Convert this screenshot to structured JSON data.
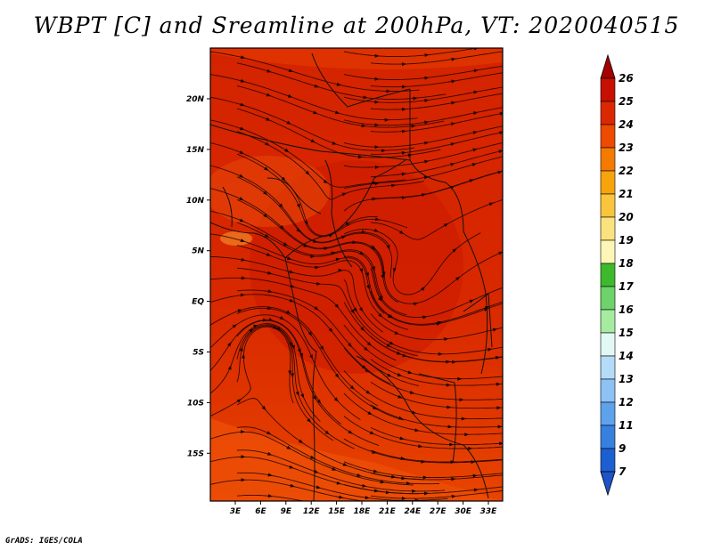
{
  "title": "WBPT [C] and Sreamline at 200hPa, VT: 2020040515",
  "credit": "GrADS: IGES/COLA",
  "map": {
    "lat_labels": [
      "20N",
      "15N",
      "10N",
      "5N",
      "EQ",
      "5S",
      "10S",
      "15S"
    ],
    "lon_labels": [
      "3E",
      "6E",
      "9E",
      "12E",
      "15E",
      "18E",
      "21E",
      "24E",
      "27E",
      "30E",
      "33E"
    ]
  },
  "colorbar": {
    "labels": [
      "26",
      "25",
      "24",
      "23",
      "22",
      "21",
      "20",
      "19",
      "18",
      "17",
      "16",
      "15",
      "14",
      "13",
      "12",
      "11",
      "9",
      "7"
    ],
    "colors": [
      "#a50000",
      "#c81000",
      "#dc2800",
      "#ee4a00",
      "#f57a00",
      "#f7a30c",
      "#f9c53c",
      "#fbe27e",
      "#fdf6b7",
      "#3cba2c",
      "#6cd46a",
      "#a6eca0",
      "#e2f8f4",
      "#b4dcf8",
      "#8cc2f4",
      "#5ea2ec",
      "#3880e0",
      "#1c5fd0",
      "#1f53c8"
    ]
  }
}
